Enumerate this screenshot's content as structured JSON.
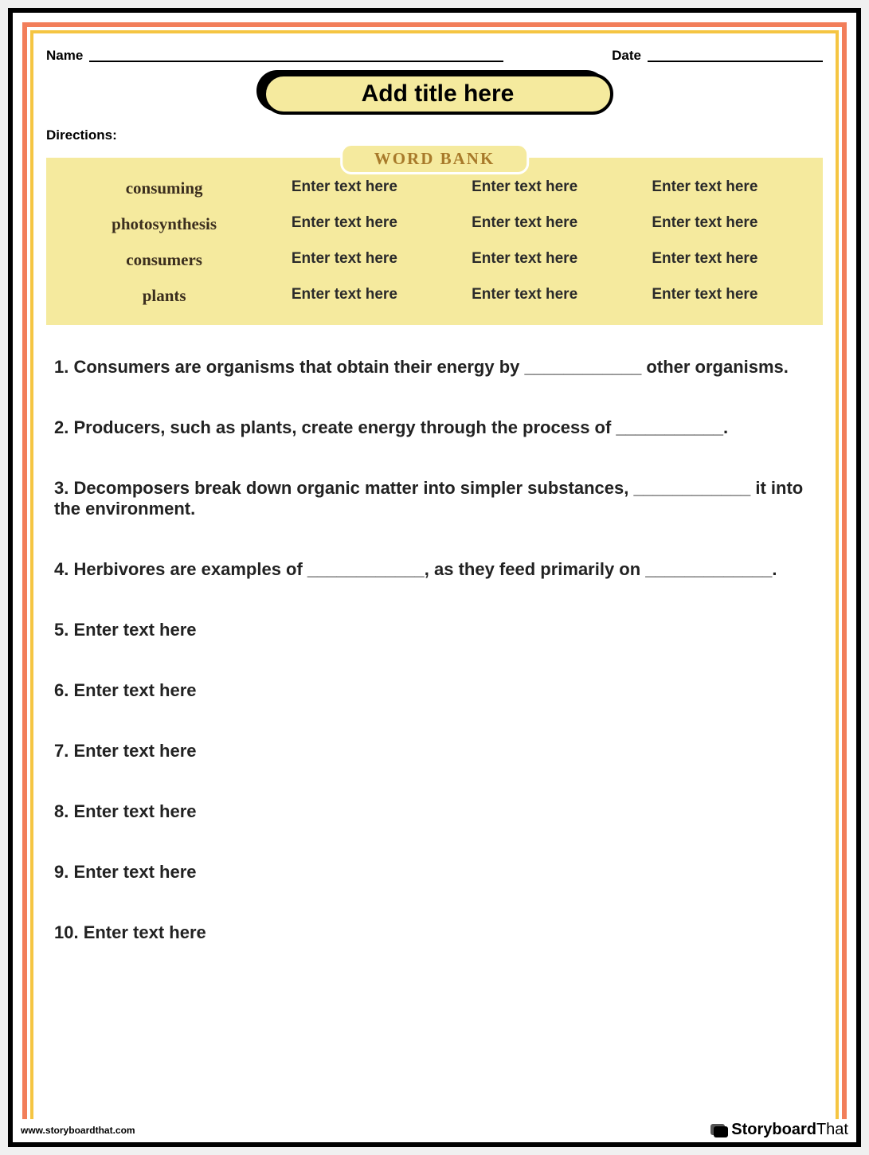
{
  "header": {
    "name_label": "Name",
    "date_label": "Date"
  },
  "title": "Add title here",
  "directions_label": "Directions:",
  "wordbank": {
    "tab_label": "WORD BANK",
    "rows": [
      [
        "consuming",
        "Enter text here",
        "Enter text here",
        "Enter text here"
      ],
      [
        "photosynthesis",
        "Enter text here",
        "Enter text here",
        "Enter text here"
      ],
      [
        "consumers",
        "Enter text here",
        "Enter text here",
        "Enter text here"
      ],
      [
        "plants",
        "Enter text here",
        "Enter text here",
        "Enter text here"
      ]
    ]
  },
  "questions": [
    "1. Consumers are organisms that obtain their energy by ____________ other organisms.",
    "2. Producers, such as plants, create energy through the process of ___________.",
    "3. Decomposers break down organic matter into simpler substances, ____________ it into the environment.",
    "4. Herbivores are examples of ____________, as they feed primarily on _____________.",
    "5. Enter text here",
    "6. Enter text here",
    "7. Enter text here",
    "8. Enter text here",
    "9. Enter text here",
    "10. Enter text here"
  ],
  "footer": {
    "url": "www.storyboardthat.com",
    "brand_first": "Storyboard",
    "brand_second": "That"
  },
  "colors": {
    "coral_border": "#f27e5a",
    "yellow_border": "#f5c542",
    "pale_yellow": "#f5ea9e",
    "tab_text": "#a87a2a",
    "body_text": "#222222"
  },
  "typography": {
    "title_fontsize": 30,
    "question_fontsize": 22,
    "wordbank_serif_fontsize": 21,
    "wordbank_sans_fontsize": 19,
    "label_fontsize": 17
  }
}
